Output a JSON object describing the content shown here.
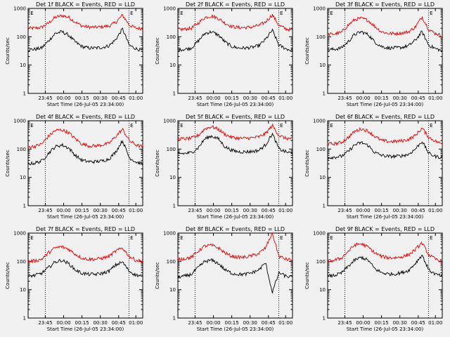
{
  "colors": {
    "background": "#f0f0f0",
    "events": "#000000",
    "lld": "#e00000",
    "axes": "#000000"
  },
  "chart_data": [
    {
      "type": "line",
      "title": "Det 1f BLACK = Events, RED = LLD",
      "xlabel": "Start Time (26-Jul-05 23:34:00)",
      "ylabel": "Counts/sec",
      "xticks": [
        "23:45",
        "00:00",
        "00:15",
        "00:30",
        "00:45",
        "01:00"
      ],
      "yticks": [
        "1",
        "10",
        "100",
        "1000"
      ],
      "ylim": [
        1,
        1000
      ],
      "yscale": "log",
      "marker": "E",
      "series": [
        {
          "name": "LLD",
          "color": "#e00000",
          "values": [
            200,
            200,
            215,
            300,
            480,
            560,
            490,
            330,
            240,
            220,
            215,
            225,
            240,
            320,
            580,
            260,
            200,
            195
          ]
        },
        {
          "name": "Events",
          "color": "#000000",
          "values": [
            35,
            36,
            40,
            70,
            130,
            150,
            115,
            65,
            45,
            40,
            40,
            42,
            48,
            80,
            190,
            50,
            38,
            32
          ]
        }
      ]
    },
    {
      "type": "line",
      "title": "Det 2f BLACK = Events, RED = LLD",
      "xlabel": "Start Time (26-Jul-05 23:34:00)",
      "ylabel": "Counts/sec",
      "xticks": [
        "23:45",
        "00:00",
        "00:15",
        "00:30",
        "00:45",
        "01:00"
      ],
      "yticks": [
        "1",
        "10",
        "100",
        "1000"
      ],
      "ylim": [
        1,
        1000
      ],
      "yscale": "log",
      "marker": "E",
      "series": [
        {
          "name": "LLD",
          "color": "#e00000",
          "values": [
            180,
            185,
            200,
            300,
            480,
            540,
            450,
            300,
            230,
            210,
            210,
            220,
            250,
            330,
            600,
            250,
            190,
            170
          ]
        },
        {
          "name": "Events",
          "color": "#000000",
          "values": [
            35,
            36,
            40,
            70,
            130,
            150,
            115,
            65,
            45,
            40,
            40,
            42,
            48,
            80,
            170,
            50,
            38,
            32
          ]
        }
      ]
    },
    {
      "type": "line",
      "title": "Det 3f BLACK = Events, RED = LLD",
      "xlabel": "Start Time (26-Jul-05 23:34:00)",
      "ylabel": "Counts/sec",
      "xticks": [
        "23:45",
        "00:00",
        "00:15",
        "00:30",
        "00:45",
        "01:00"
      ],
      "yticks": [
        "1",
        "10",
        "100",
        "1000"
      ],
      "ylim": [
        1,
        1000
      ],
      "yscale": "log",
      "marker": "E",
      "series": [
        {
          "name": "LLD",
          "color": "#e00000",
          "values": [
            120,
            125,
            140,
            250,
            400,
            450,
            380,
            230,
            150,
            130,
            130,
            135,
            150,
            220,
            500,
            180,
            130,
            110
          ]
        },
        {
          "name": "Events",
          "color": "#000000",
          "values": [
            35,
            36,
            40,
            65,
            120,
            150,
            120,
            65,
            45,
            40,
            40,
            42,
            48,
            75,
            150,
            50,
            38,
            32
          ]
        }
      ]
    },
    {
      "type": "line",
      "title": "Det 4f BLACK = Events, RED = LLD",
      "xlabel": "Start Time (26-Jul-05 23:34:00)",
      "ylabel": "Counts/sec",
      "xticks": [
        "23:45",
        "00:00",
        "00:15",
        "00:30",
        "00:45",
        "01:00"
      ],
      "yticks": [
        "1",
        "10",
        "100",
        "1000"
      ],
      "ylim": [
        1,
        1000
      ],
      "yscale": "log",
      "marker": "E",
      "series": [
        {
          "name": "LLD",
          "color": "#e00000",
          "values": [
            120,
            125,
            150,
            280,
            450,
            480,
            380,
            230,
            150,
            130,
            130,
            140,
            160,
            280,
            500,
            200,
            140,
            120
          ]
        },
        {
          "name": "Events",
          "color": "#000000",
          "values": [
            30,
            32,
            38,
            70,
            120,
            140,
            110,
            60,
            40,
            36,
            36,
            38,
            45,
            80,
            200,
            50,
            35,
            30
          ]
        }
      ]
    },
    {
      "type": "line",
      "title": "Det 5f BLACK = Events, RED = LLD",
      "xlabel": "Start Time (26-Jul-05 23:34:00)",
      "ylabel": "Counts/sec",
      "xticks": [
        "23:45",
        "00:00",
        "00:15",
        "00:30",
        "00:45",
        "01:00"
      ],
      "yticks": [
        "1",
        "10",
        "100",
        "1000"
      ],
      "ylim": [
        1,
        1000
      ],
      "yscale": "log",
      "marker": "E",
      "series": [
        {
          "name": "LLD",
          "color": "#e00000",
          "values": [
            230,
            230,
            240,
            300,
            520,
            620,
            500,
            330,
            260,
            240,
            240,
            250,
            270,
            350,
            680,
            300,
            240,
            230
          ]
        },
        {
          "name": "Events",
          "color": "#000000",
          "values": [
            70,
            70,
            75,
            110,
            230,
            290,
            230,
            120,
            90,
            80,
            80,
            82,
            90,
            140,
            350,
            100,
            80,
            70
          ]
        }
      ]
    },
    {
      "type": "line",
      "title": "Det 6f BLACK = Events, RED = LLD",
      "xlabel": "Start Time (26-Jul-05 23:34:00)",
      "ylabel": "Counts/sec",
      "xticks": [
        "23:45",
        "00:00",
        "00:15",
        "00:30",
        "00:45",
        "01:00"
      ],
      "yticks": [
        "1",
        "10",
        "100",
        "1000"
      ],
      "ylim": [
        1,
        1000
      ],
      "yscale": "log",
      "marker": "E",
      "series": [
        {
          "name": "LLD",
          "color": "#e00000",
          "values": [
            150,
            155,
            170,
            250,
            420,
            520,
            430,
            280,
            200,
            185,
            185,
            195,
            220,
            300,
            550,
            260,
            190,
            150
          ]
        },
        {
          "name": "Events",
          "color": "#000000",
          "values": [
            50,
            52,
            55,
            80,
            140,
            170,
            135,
            75,
            60,
            55,
            55,
            58,
            65,
            100,
            190,
            70,
            55,
            50
          ]
        }
      ]
    },
    {
      "type": "line",
      "title": "Det 7f BLACK = Events, RED = LLD",
      "xlabel": "Start Time (26-Jul-05 23:34:00)",
      "ylabel": "Counts/sec",
      "xticks": [
        "23:45",
        "00:00",
        "00:15",
        "00:30",
        "00:45",
        "01:00"
      ],
      "yticks": [
        "1",
        "10",
        "100",
        "1000"
      ],
      "ylim": [
        1,
        1000
      ],
      "yscale": "log",
      "marker": "E",
      "series": [
        {
          "name": "LLD",
          "color": "#e00000",
          "values": [
            100,
            105,
            120,
            200,
            300,
            330,
            270,
            180,
            130,
            120,
            120,
            130,
            150,
            230,
            300,
            150,
            110,
            100
          ]
        },
        {
          "name": "Events",
          "color": "#000000",
          "values": [
            30,
            32,
            38,
            60,
            95,
            110,
            85,
            50,
            38,
            35,
            35,
            38,
            45,
            75,
            95,
            45,
            33,
            30
          ]
        }
      ]
    },
    {
      "type": "line",
      "title": "Det 8f BLACK = Events, RED = LLD",
      "xlabel": "Start Time (26-Jul-05 23:34:00)",
      "ylabel": "Counts/sec",
      "xticks": [
        "23:45",
        "00:00",
        "00:15",
        "00:30",
        "00:45",
        "01:00"
      ],
      "yticks": [
        "1",
        "10",
        "100",
        "1000"
      ],
      "ylim": [
        1,
        1000
      ],
      "yscale": "log",
      "marker": "E",
      "series": [
        {
          "name": "LLD",
          "color": "#e00000",
          "values": [
            120,
            125,
            140,
            230,
            350,
            370,
            300,
            200,
            150,
            140,
            140,
            160,
            190,
            300,
            1000,
            150,
            120,
            110
          ]
        },
        {
          "name": "Events",
          "color": "#000000",
          "values": [
            28,
            30,
            35,
            60,
            100,
            110,
            85,
            50,
            38,
            35,
            35,
            40,
            50,
            90,
            8,
            40,
            30,
            28
          ]
        }
      ]
    },
    {
      "type": "line",
      "title": "Det 9f BLACK = Events, RED = LLD",
      "xlabel": "Start Time (26-Jul-05 23:34:00)",
      "ylabel": "Counts/sec",
      "xticks": [
        "23:45",
        "00:00",
        "00:15",
        "00:30",
        "00:45",
        "01:00"
      ],
      "yticks": [
        "1",
        "10",
        "100",
        "1000"
      ],
      "ylim": [
        1,
        1000
      ],
      "yscale": "log",
      "marker": "E",
      "series": [
        {
          "name": "LLD",
          "color": "#e00000",
          "values": [
            100,
            110,
            130,
            220,
            380,
            420,
            320,
            200,
            150,
            135,
            135,
            145,
            170,
            260,
            450,
            170,
            120,
            100
          ]
        },
        {
          "name": "Events",
          "color": "#000000",
          "values": [
            30,
            32,
            38,
            65,
            110,
            140,
            110,
            55,
            40,
            36,
            36,
            40,
            48,
            85,
            170,
            50,
            35,
            30
          ]
        }
      ]
    }
  ]
}
